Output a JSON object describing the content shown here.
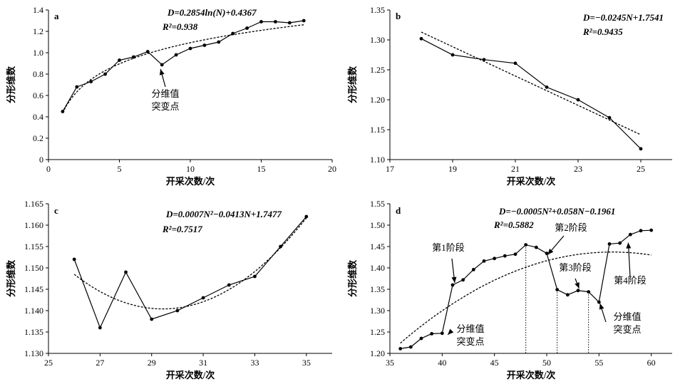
{
  "panels": [
    {
      "panel_label": "a",
      "equation": "D=0.2854ln(N)+0.4367",
      "r2": "R²=0.938",
      "xlabel": "开采次数/次",
      "ylabel": "分形维数",
      "annotations": [
        {
          "text": "分维值",
          "text2": "突变点",
          "x": 7.9,
          "y": 0.887
        }
      ],
      "stage_labels": []
    },
    {
      "panel_label": "b",
      "equation": "D=−0.0245N+1.7541",
      "r2": "R²=0.9435",
      "xlabel": "开采次数/次",
      "ylabel": "分形维数",
      "annotations": [],
      "stage_labels": []
    },
    {
      "panel_label": "c",
      "equation": "D=0.0007N²−0.0413N+1.7477",
      "r2": "R²=0.7517",
      "xlabel": "开采次数/次",
      "ylabel": "分形维数",
      "annotations": [],
      "stage_labels": []
    },
    {
      "panel_label": "d",
      "equation": "D=−0.0005N²+0.058N−0.1961",
      "r2": "R²=0.5882",
      "xlabel": "开采次数/次",
      "ylabel": "分形维数",
      "annotations": [
        {
          "text": "分维值",
          "text2": "突变点",
          "x": 40.2,
          "y": 1.247
        },
        {
          "text": "分维值",
          "text2": "突变点",
          "x": 55.3,
          "y": 1.32
        }
      ],
      "stage_labels": [
        {
          "text": "第1阶段",
          "x": 41.2,
          "y": 1.365
        },
        {
          "text": "第2阶段",
          "x": 50.1,
          "y": 1.431
        },
        {
          "text": "第3阶段",
          "x": 53.1,
          "y": 1.352
        },
        {
          "text": "第4阶段",
          "x": 57.8,
          "y": 1.459
        }
      ]
    }
  ],
  "chart_data": [
    {
      "type": "line",
      "title": "a",
      "xlabel": "开采次数/次",
      "ylabel": "分形维数",
      "xlim": [
        0,
        20
      ],
      "ylim": [
        0,
        1.4
      ],
      "xticks": [
        0,
        5,
        10,
        15,
        20
      ],
      "yticks": [
        0,
        0.2,
        0.4,
        0.6,
        0.8,
        1.0,
        1.2,
        1.4
      ],
      "ytick_labels": [
        "0",
        "0.2",
        "0.4",
        "0.6",
        "0.8",
        "1.0",
        "1.2",
        "1.4"
      ],
      "grid": false,
      "series": [
        {
          "style": "solid-markers",
          "x": [
            1,
            2,
            3,
            4,
            5,
            6,
            7,
            8,
            9,
            10,
            11,
            12,
            13,
            14,
            15,
            16,
            17,
            18
          ],
          "y": [
            0.45,
            0.68,
            0.73,
            0.8,
            0.93,
            0.96,
            1.01,
            0.887,
            0.98,
            1.04,
            1.07,
            1.1,
            1.18,
            1.23,
            1.29,
            1.29,
            1.28,
            1.3
          ]
        },
        {
          "style": "dashed-fit",
          "fit": {
            "kind": "log",
            "a": 0.2854,
            "b": 0.4367
          },
          "xrange": [
            1,
            18
          ]
        }
      ]
    },
    {
      "type": "line",
      "title": "b",
      "xlabel": "开采次数/次",
      "ylabel": "分形维数",
      "xlim": [
        17,
        26
      ],
      "ylim": [
        1.1,
        1.35
      ],
      "xticks": [
        17,
        19,
        21,
        23,
        25
      ],
      "yticks": [
        1.1,
        1.15,
        1.2,
        1.25,
        1.3,
        1.35
      ],
      "ytick_labels": [
        "1.10",
        "1.15",
        "1.20",
        "1.25",
        "1.30",
        "1.35"
      ],
      "grid": false,
      "series": [
        {
          "style": "solid-markers",
          "x": [
            18,
            19,
            20,
            21,
            22,
            23,
            24,
            25
          ],
          "y": [
            1.302,
            1.275,
            1.267,
            1.261,
            1.221,
            1.2,
            1.17,
            1.118
          ]
        },
        {
          "style": "dashed-fit",
          "fit": {
            "kind": "poly",
            "c": [
              1.7541,
              -0.0245
            ]
          },
          "xrange": [
            18,
            25
          ]
        }
      ]
    },
    {
      "type": "line",
      "title": "c",
      "xlabel": "开采次数/次",
      "ylabel": "分形维数",
      "xlim": [
        25,
        36
      ],
      "ylim": [
        1.13,
        1.165
      ],
      "xticks": [
        25,
        27,
        29,
        31,
        33,
        35
      ],
      "yticks": [
        1.13,
        1.135,
        1.14,
        1.145,
        1.15,
        1.155,
        1.16,
        1.165
      ],
      "ytick_labels": [
        "1.130",
        "1.135",
        "1.140",
        "1.145",
        "1.150",
        "1.155",
        "1.160",
        "1.165"
      ],
      "grid": false,
      "series": [
        {
          "style": "solid-markers",
          "x": [
            26,
            27,
            28,
            29,
            30,
            31,
            32,
            33,
            34,
            35
          ],
          "y": [
            1.152,
            1.136,
            1.149,
            1.138,
            1.14,
            1.143,
            1.146,
            1.148,
            1.155,
            1.162
          ]
        },
        {
          "style": "dashed-fit",
          "fit": {
            "kind": "quadratic-points",
            "points": [
              [
                26,
                1.1485
              ],
              [
                29.5,
                1.1404
              ],
              [
                35,
                1.1617
              ]
            ]
          },
          "xrange": [
            26,
            35
          ]
        }
      ]
    },
    {
      "type": "line",
      "title": "d",
      "xlabel": "开采次数/次",
      "ylabel": "分形维数",
      "xlim": [
        35,
        62
      ],
      "ylim": [
        1.2,
        1.55
      ],
      "xticks": [
        35,
        40,
        45,
        50,
        55,
        60
      ],
      "yticks": [
        1.2,
        1.25,
        1.3,
        1.35,
        1.4,
        1.45,
        1.5,
        1.55
      ],
      "ytick_labels": [
        "1.20",
        "1.25",
        "1.30",
        "1.35",
        "1.40",
        "1.45",
        "1.50",
        "1.55"
      ],
      "grid": false,
      "vlines": [
        48,
        51,
        54
      ],
      "series": [
        {
          "style": "solid-markers",
          "x": [
            36,
            37,
            38,
            39,
            40,
            41,
            42,
            43,
            44,
            45,
            46,
            47,
            48,
            49,
            50,
            51,
            52,
            53,
            54,
            55,
            56,
            57,
            58,
            59,
            60
          ],
          "y": [
            1.211,
            1.215,
            1.235,
            1.246,
            1.247,
            1.36,
            1.372,
            1.396,
            1.416,
            1.422,
            1.428,
            1.432,
            1.454,
            1.448,
            1.434,
            1.349,
            1.337,
            1.347,
            1.344,
            1.32,
            1.456,
            1.458,
            1.478,
            1.487,
            1.488
          ]
        },
        {
          "style": "dashed-fit",
          "fit": {
            "kind": "quadratic-points",
            "points": [
              [
                36,
                1.224
              ],
              [
                55.8,
                1.437
              ],
              [
                60,
                1.43
              ]
            ]
          },
          "xrange": [
            36,
            60
          ]
        }
      ]
    }
  ]
}
